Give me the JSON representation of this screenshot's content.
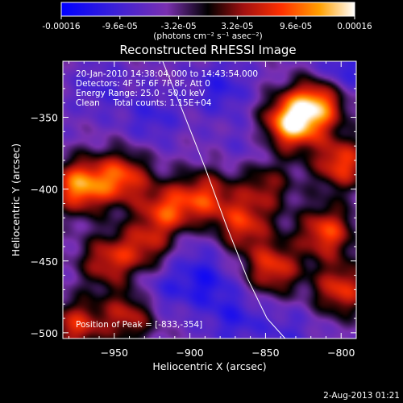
{
  "chart_data": {
    "type": "heatmap",
    "title": "Reconstructed RHESSI Image",
    "xlabel": "Heliocentric X (arcsec)",
    "ylabel": "Heliocentric Y (arcsec)",
    "xlim": [
      -984,
      -790
    ],
    "ylim": [
      -504,
      -311
    ],
    "xticks": [
      -950,
      -900,
      -850,
      -800
    ],
    "yticks": [
      -350,
      -400,
      -450,
      -500
    ],
    "colorbar": {
      "range": [
        -0.00016,
        0.00016
      ],
      "tick_values": [
        -0.00016,
        -9.6e-05,
        -3.2e-05,
        3.2e-05,
        9.6e-05,
        0.00016
      ],
      "tick_labels": [
        "-0.00016",
        "-9.6e-05",
        "-3.2e-05",
        "3.2e-05",
        "9.6e-05",
        "0.00016"
      ],
      "units": "(photons cm⁻² s⁻¹ asec⁻²)"
    },
    "peak": [
      -833,
      -354
    ],
    "limb_curve_x": [
      -918,
      -905,
      -890,
      -876,
      -862,
      -849,
      -837
    ],
    "limb_curve_y": [
      -311,
      -345,
      -385,
      -425,
      -462,
      -490,
      -504
    ],
    "sources": [
      {
        "x": -833,
        "y": -354,
        "value": 0.00016
      },
      {
        "x": -815,
        "y": -340,
        "value": 0.00012
      },
      {
        "x": -800,
        "y": -382,
        "value": 0.0001
      },
      {
        "x": -973,
        "y": -398,
        "value": 0.00013
      },
      {
        "x": -945,
        "y": -392,
        "value": 0.0001
      },
      {
        "x": -915,
        "y": -415,
        "value": 9e-05
      },
      {
        "x": -890,
        "y": -405,
        "value": 8e-05
      },
      {
        "x": -865,
        "y": -425,
        "value": 8e-05
      },
      {
        "x": -845,
        "y": -455,
        "value": 9e-05
      },
      {
        "x": -810,
        "y": -430,
        "value": 0.0001
      },
      {
        "x": -800,
        "y": -470,
        "value": 9e-05
      },
      {
        "x": -955,
        "y": -450,
        "value": 7e-05
      },
      {
        "x": -930,
        "y": -440,
        "value": 6e-05
      },
      {
        "x": -975,
        "y": -495,
        "value": 8e-05
      },
      {
        "x": -940,
        "y": -488,
        "value": 7e-05
      },
      {
        "x": -850,
        "y": -398,
        "value": 5e-05
      },
      {
        "x": -960,
        "y": -330,
        "value": -7e-05
      },
      {
        "x": -925,
        "y": -350,
        "value": -8e-05
      },
      {
        "x": -880,
        "y": -330,
        "value": -9e-05
      },
      {
        "x": -860,
        "y": -370,
        "value": -6e-05
      },
      {
        "x": -800,
        "y": -318,
        "value": -0.0001
      },
      {
        "x": -890,
        "y": -465,
        "value": -0.0001
      },
      {
        "x": -920,
        "y": -470,
        "value": -8e-05
      },
      {
        "x": -870,
        "y": -490,
        "value": -9e-05
      },
      {
        "x": -835,
        "y": -500,
        "value": -7e-05
      },
      {
        "x": -900,
        "y": -440,
        "value": -6e-05
      }
    ]
  },
  "labels": {
    "cb_units": "(photons cm⁻² s⁻¹ asec⁻²)",
    "title": "Reconstructed RHESSI Image",
    "xlabel": "Heliocentric X (arcsec)",
    "ylabel": "Heliocentric Y (arcsec)",
    "info_time": "20-Jan-2010 14:38:04.000 to 14:43:54.000",
    "info_detectors": "Detectors: 4F 5F 6F 7F 8F, Att 0",
    "info_energy": "Energy Range: 25.0 - 50.0 keV",
    "info_clean": "Clean     Total counts: 1.15E+04",
    "peak_text": "Position of Peak = [-833,-354]",
    "timestamp": "2-Aug-2013 01:21"
  }
}
